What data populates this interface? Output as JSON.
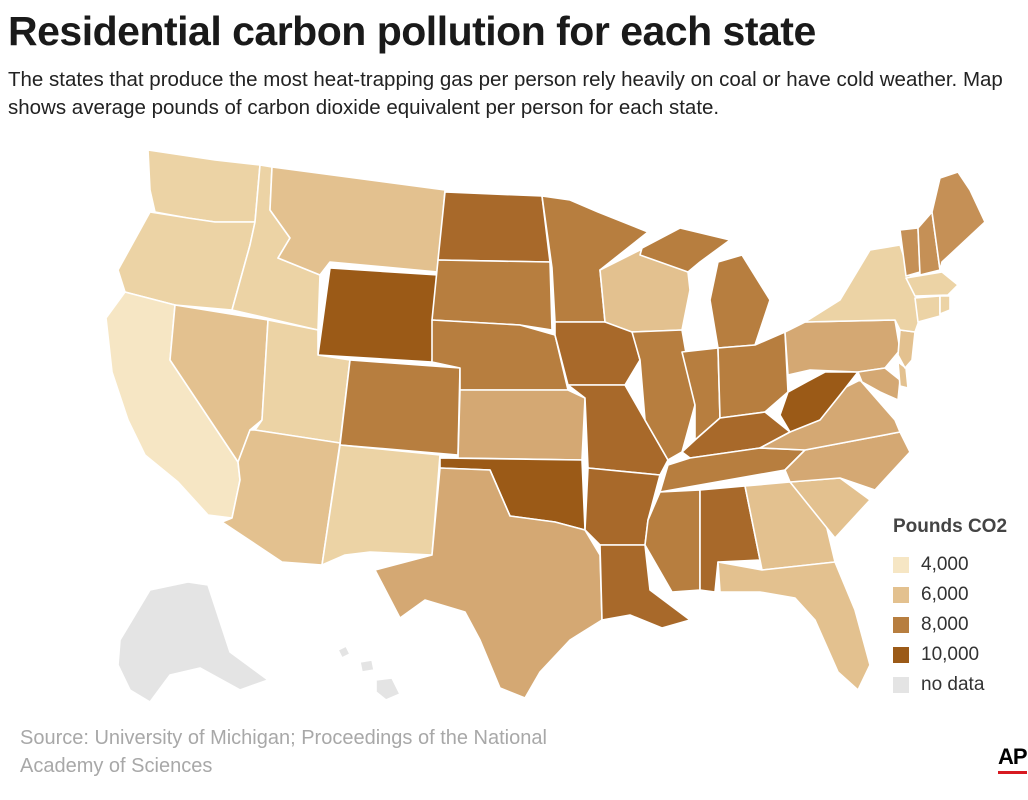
{
  "title": "Residential carbon pollution for each state",
  "subtitle": "The states that produce the most heat-trapping gas per person rely heavily on coal or have cold weather. Map shows average pounds of carbon dioxide equivalent per person for each state.",
  "legend": {
    "title": "Pounds CO2",
    "items": [
      {
        "label": "4,000",
        "color": "#f6e6c4"
      },
      {
        "label": "6,000",
        "color": "#e3c18f"
      },
      {
        "label": "8,000",
        "color": "#b77e3f"
      },
      {
        "label": "10,000",
        "color": "#9b5a17"
      },
      {
        "label": "no data",
        "color": "#e4e4e4"
      }
    ]
  },
  "colors": {
    "c1": "#f6e6c4",
    "c2": "#ecd3a5",
    "c3": "#e3c18f",
    "c4": "#d4a873",
    "c5": "#c59056",
    "c6": "#b77e3f",
    "c7": "#a8692a",
    "c8": "#9b5a17",
    "nodata": "#e4e4e4"
  },
  "source": "Source: University of Michigan; Proceedings of the National Academy of Sciences",
  "brand": "AP"
}
